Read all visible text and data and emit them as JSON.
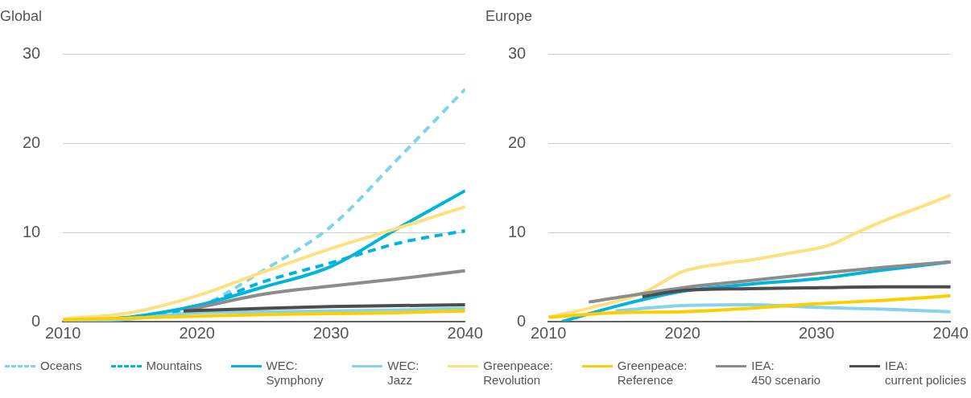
{
  "chart_data": [
    {
      "type": "line",
      "title": "Global",
      "xlim": [
        2010,
        2040
      ],
      "xticks": [
        2010,
        2020,
        2030,
        2040
      ],
      "ylim": [
        0,
        30
      ],
      "yticks": [
        0,
        10,
        20,
        30
      ],
      "grid": "y",
      "legend": "bottom",
      "marker": "none",
      "series": [
        {
          "name": "Oceans",
          "color": "#7fd4ea",
          "line_style": "dashed",
          "x": [
            2010,
            2015,
            2020,
            2025,
            2030,
            2035,
            2040
          ],
          "values": [
            0,
            0.5,
            1.6,
            5.8,
            10.7,
            18.3,
            26.1
          ]
        },
        {
          "name": "Mountains",
          "color": "#00b4dc",
          "line_style": "dashed",
          "x": [
            2010,
            2015,
            2020,
            2025,
            2030,
            2035,
            2040
          ],
          "values": [
            0,
            0.5,
            1.7,
            4.5,
            6.6,
            8.8,
            10.2
          ]
        },
        {
          "name": "WEC:\nSymphony",
          "color": "#00b4dc",
          "line_style": "solid",
          "x": [
            2010,
            2015,
            2020,
            2025,
            2030,
            2035,
            2040
          ],
          "values": [
            0,
            0.5,
            1.8,
            3.9,
            6.2,
            10.5,
            14.7
          ]
        },
        {
          "name": "WEC:\nJazz",
          "color": "#85d3ec",
          "line_style": "solid",
          "x": [
            2010,
            2015,
            2020,
            2025,
            2030,
            2035,
            2040
          ],
          "values": [
            0,
            0.3,
            1.0,
            1.1,
            1.2,
            1.3,
            1.5
          ]
        },
        {
          "name": "Greenpeace:\nRevolution",
          "color": "#fde07f",
          "line_style": "solid",
          "x": [
            2010,
            2015,
            2020,
            2025,
            2030,
            2035,
            2040
          ],
          "values": [
            0.3,
            1.0,
            2.9,
            5.6,
            8.2,
            10.5,
            12.9
          ]
        },
        {
          "name": "Greenpeace:\nReference",
          "color": "#fcd000",
          "line_style": "solid",
          "x": [
            2010,
            2015,
            2020,
            2025,
            2030,
            2035,
            2040
          ],
          "values": [
            0.2,
            0.4,
            0.6,
            0.8,
            0.9,
            1.0,
            1.2
          ]
        },
        {
          "name": "IEA:\n450 scenario",
          "color": "#8c8c8c",
          "line_style": "solid",
          "x": [
            2019,
            2025,
            2030,
            2035,
            2040
          ],
          "values": [
            1.2,
            3.1,
            4.0,
            4.8,
            5.7
          ]
        },
        {
          "name": "IEA:\ncurrent policies",
          "color": "#4d4d4d",
          "line_style": "solid",
          "x": [
            2019,
            2025,
            2030,
            2035,
            2040
          ],
          "values": [
            1.2,
            1.5,
            1.7,
            1.8,
            1.9
          ]
        }
      ]
    },
    {
      "type": "line",
      "title": "Europe",
      "xlim": [
        2010,
        2040
      ],
      "xticks": [
        2010,
        2020,
        2030,
        2040
      ],
      "ylim": [
        0,
        30
      ],
      "yticks": [
        0,
        10,
        20,
        30
      ],
      "grid": "y",
      "marker": "none",
      "series": [
        {
          "color": "#00b4dc",
          "line_style": "solid",
          "x": [
            2011,
            2015,
            2020,
            2025,
            2030,
            2035,
            2040
          ],
          "values": [
            0,
            1.7,
            3.4,
            4.2,
            4.8,
            5.8,
            6.7
          ]
        },
        {
          "color": "#85d3ec",
          "line_style": "solid",
          "x": [
            2015,
            2020,
            2025,
            2030,
            2035,
            2040
          ],
          "values": [
            1.2,
            1.8,
            1.9,
            1.6,
            1.4,
            1.1
          ]
        },
        {
          "color": "#fde07f",
          "line_style": "solid",
          "x": [
            2010,
            2013,
            2017,
            2020,
            2023,
            2025,
            2028,
            2031,
            2033,
            2035,
            2038,
            2040
          ],
          "values": [
            0.5,
            1.5,
            3.2,
            5.6,
            6.5,
            6.9,
            7.7,
            8.6,
            10.0,
            11.3,
            13.0,
            14.2
          ]
        },
        {
          "color": "#fcd000",
          "line_style": "solid",
          "x": [
            2010,
            2015,
            2020,
            2025,
            2030,
            2035,
            2040
          ],
          "values": [
            0.5,
            1.0,
            1.1,
            1.5,
            2.0,
            2.4,
            2.9
          ]
        },
        {
          "color": "#8c8c8c",
          "line_style": "solid",
          "x": [
            2013,
            2020,
            2025,
            2030,
            2035,
            2040
          ],
          "values": [
            2.2,
            3.8,
            4.6,
            5.4,
            6.1,
            6.7
          ]
        },
        {
          "color": "#4d4d4d",
          "line_style": "solid",
          "x": [
            2017,
            2020,
            2025,
            2030,
            2035,
            2040
          ],
          "values": [
            2.8,
            3.5,
            3.7,
            3.8,
            3.9,
            3.9
          ]
        }
      ]
    }
  ]
}
